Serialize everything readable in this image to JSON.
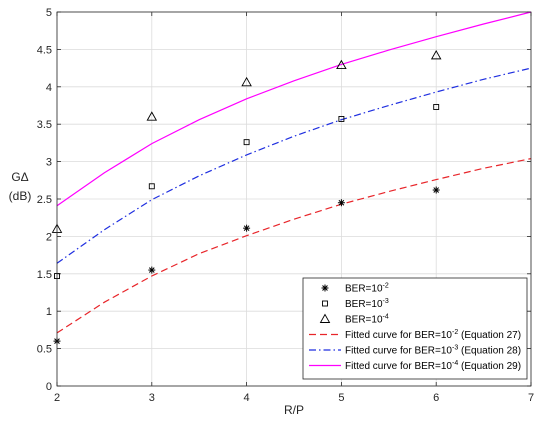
{
  "chart_data": {
    "type": "line",
    "xlabel": "R/P",
    "ylabel_main": "GΔ",
    "ylabel_unit": "(dB)",
    "xlim": [
      2,
      7
    ],
    "ylim": [
      0,
      5
    ],
    "xticks": [
      "2",
      "3",
      "4",
      "5",
      "6",
      "7"
    ],
    "yticks": [
      "0",
      "0.5",
      "1",
      "1.5",
      "2",
      "2.5",
      "3",
      "3.5",
      "4",
      "4.5",
      "5"
    ],
    "grid": true,
    "legend_position": "bottom-right",
    "series": [
      {
        "name": "BER=10",
        "sup": "-2",
        "kind": "scatter",
        "marker": "asterisk",
        "color": "#000000",
        "x": [
          2,
          3,
          4,
          5,
          6
        ],
        "y": [
          0.6,
          1.55,
          2.11,
          2.45,
          2.62
        ]
      },
      {
        "name": "BER=10",
        "sup": "-3",
        "kind": "scatter",
        "marker": "square",
        "color": "#000000",
        "x": [
          2,
          3,
          4,
          5,
          6
        ],
        "y": [
          1.47,
          2.67,
          3.26,
          3.57,
          3.73
        ]
      },
      {
        "name": "BER=10",
        "sup": "-4",
        "kind": "scatter",
        "marker": "triangle",
        "color": "#000000",
        "x": [
          2,
          3,
          4,
          5,
          6
        ],
        "y": [
          2.1,
          3.6,
          4.06,
          4.29,
          4.42
        ]
      },
      {
        "name": "Fitted curve for BER=10",
        "sup": "-2",
        "suffix": " (Equation 27)",
        "kind": "line",
        "dash": "dash",
        "color": "#e8252a",
        "x": [
          2,
          2.5,
          3,
          3.5,
          4,
          4.5,
          5,
          5.5,
          6,
          6.5,
          7
        ],
        "y": [
          0.71,
          1.12,
          1.47,
          1.77,
          2.01,
          2.23,
          2.43,
          2.6,
          2.76,
          2.91,
          3.04
        ]
      },
      {
        "name": "Fitted curve for BER=10",
        "sup": "-3",
        "suffix": " (Equation 28)",
        "kind": "line",
        "dash": "dashdot",
        "color": "#1f2fe0",
        "x": [
          2,
          2.5,
          3,
          3.5,
          4,
          4.5,
          5,
          5.5,
          6,
          6.5,
          7
        ],
        "y": [
          1.64,
          2.09,
          2.49,
          2.81,
          3.09,
          3.34,
          3.56,
          3.75,
          3.93,
          4.1,
          4.25
        ]
      },
      {
        "name": "Fitted curve for BER=10",
        "sup": "-4",
        "suffix": " (Equation 29)",
        "kind": "line",
        "dash": "solid",
        "color": "#ff00ff",
        "x": [
          2,
          2.5,
          3,
          3.5,
          4,
          4.5,
          5,
          5.5,
          6,
          6.5,
          7
        ],
        "y": [
          2.41,
          2.85,
          3.24,
          3.56,
          3.84,
          4.08,
          4.3,
          4.49,
          4.67,
          4.84,
          5.0
        ]
      }
    ]
  }
}
